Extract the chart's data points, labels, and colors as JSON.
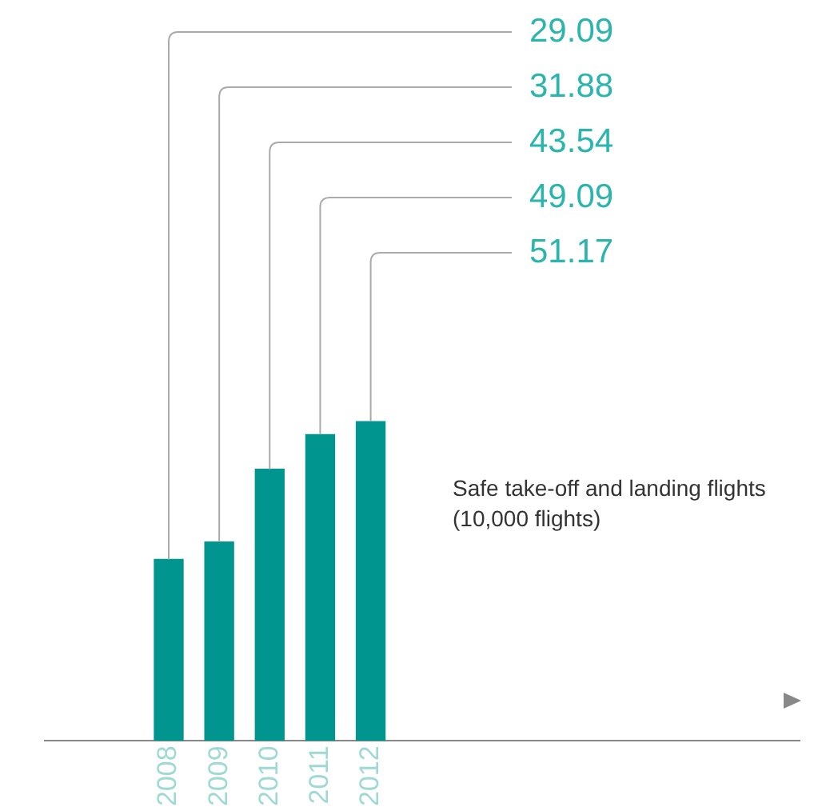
{
  "chart_data": {
    "type": "bar",
    "annotations": [
      "Safe take-off and landing flights (10,000 flights)"
    ],
    "categories": [
      "2008",
      "2009",
      "2010",
      "2011",
      "2012"
    ],
    "values": [
      29.09,
      31.88,
      43.54,
      49.09,
      51.17
    ],
    "value_labels": [
      "29.09",
      "31.88",
      "43.54",
      "49.09",
      "51.17"
    ],
    "color": "#00968f",
    "tick_labels": "x",
    "legend": false,
    "grid": false
  }
}
